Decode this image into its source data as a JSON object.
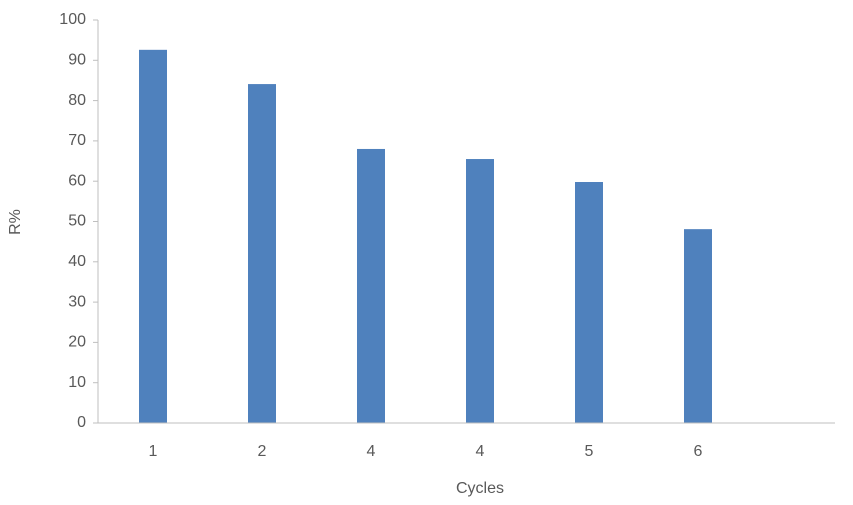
{
  "chart_data": {
    "type": "bar",
    "x_label": "Cycles",
    "y_label": "R%",
    "categories": [
      "1",
      "2",
      "4",
      "4",
      "5",
      "6"
    ],
    "values": [
      92.6,
      84.1,
      68,
      65.5,
      59.8,
      48.1
    ],
    "color": "#4f81bd",
    "ylim": [
      0,
      100
    ],
    "yticks": [
      0,
      10,
      20,
      30,
      40,
      50,
      60,
      70,
      80,
      90,
      100
    ],
    "grid": false
  }
}
